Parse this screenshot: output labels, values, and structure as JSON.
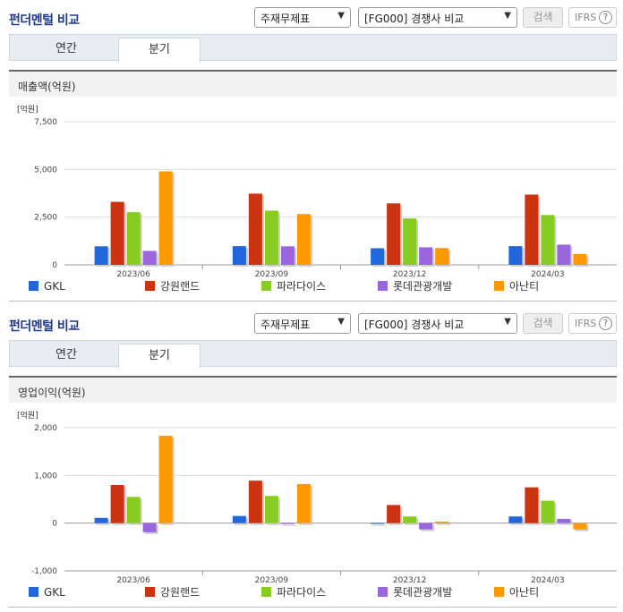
{
  "colors": [
    "#2266dd",
    "#cc3311",
    "#88cc22",
    "#9966dd",
    "#ff9900"
  ],
  "panels": [
    {
      "title": "펀더멘털 비교",
      "select1": "주재무제표",
      "select2": "[FG000] 경쟁사 비교",
      "search_label": "검색",
      "ifrs_label": "IFRS",
      "help_icon": "?",
      "tabs": [
        "연간",
        "분기"
      ],
      "subtitle": "매출액(억원)"
    },
    {
      "title": "펀더멘털 비교",
      "select1": "주재무제표",
      "select2": "[FG000] 경쟁사 비교",
      "search_label": "검색",
      "ifrs_label": "IFRS",
      "help_icon": "?",
      "tabs": [
        "연간",
        "분기"
      ],
      "subtitle": "영업이익(억원)"
    }
  ],
  "chart_data": [
    {
      "type": "bar",
      "unit_label": "[억원]",
      "categories": [
        "2023/06",
        "2023/09",
        "2023/12",
        "2024/03"
      ],
      "ylim": [
        0,
        7500
      ],
      "yticks": [
        "7,500",
        "5,000",
        "2,500",
        "0"
      ],
      "ytick_values": [
        7500,
        5000,
        2500,
        0
      ],
      "series": [
        {
          "name": "GKL",
          "values": [
            970,
            980,
            870,
            980
          ]
        },
        {
          "name": "강원랜드",
          "values": [
            3300,
            3730,
            3220,
            3680
          ]
        },
        {
          "name": "파라다이스",
          "values": [
            2760,
            2840,
            2430,
            2610
          ]
        },
        {
          "name": "롯데관광개발",
          "values": [
            730,
            970,
            920,
            1060
          ]
        },
        {
          "name": "아난티",
          "values": [
            4900,
            2660,
            880,
            570
          ]
        }
      ],
      "legend_position": "bottom"
    },
    {
      "type": "bar",
      "unit_label": "[억원]",
      "categories": [
        "2023/06",
        "2023/09",
        "2023/12",
        "2024/03"
      ],
      "ylim": [
        -1000,
        2000
      ],
      "yticks": [
        "2,000",
        "1,000",
        "0",
        "-1,000"
      ],
      "ytick_values": [
        2000,
        1000,
        0,
        -1000
      ],
      "series": [
        {
          "name": "GKL",
          "values": [
            110,
            150,
            0,
            140
          ]
        },
        {
          "name": "강원랜드",
          "values": [
            800,
            890,
            380,
            750
          ]
        },
        {
          "name": "파라다이스",
          "values": [
            550,
            570,
            140,
            470
          ]
        },
        {
          "name": "롯데관광개발",
          "values": [
            -190,
            -20,
            -130,
            90
          ]
        },
        {
          "name": "아난티",
          "values": [
            1830,
            820,
            30,
            -130
          ]
        }
      ],
      "legend_position": "bottom"
    }
  ]
}
